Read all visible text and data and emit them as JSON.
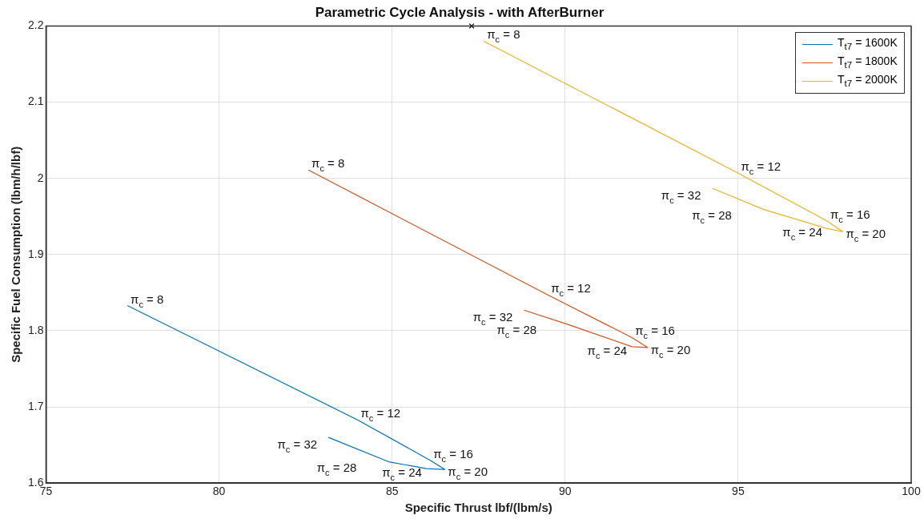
{
  "chart_data": {
    "type": "line",
    "title": "Parametric Cycle Analysis - with AfterBurner",
    "xlabel": "Specific Thrust lbf/(lbm/s)",
    "ylabel": "Specific Fuel Consumption (lbm/h/lbf)",
    "xlim": [
      75,
      100
    ],
    "xticks": [
      75,
      80,
      85,
      90,
      95,
      100
    ],
    "ylim": [
      1.6,
      2.2
    ],
    "yticks": [
      1.6,
      1.7,
      1.8,
      1.9,
      2,
      2.1,
      2.2
    ],
    "grid": true,
    "legend": "top right",
    "marker": "none",
    "line_style": "solid",
    "series": [
      {
        "name": "T$_{t7}$ = 1600K",
        "color": "#0072bd",
        "x": [
          77.35,
          84.0,
          86.1,
          86.52,
          86.0,
          84.9,
          83.16
        ],
        "values": [
          1.833,
          1.683,
          1.63,
          1.618,
          1.619,
          1.628,
          1.66
        ]
      },
      {
        "name": "T$_{t7}$ = 1800K",
        "color": "#d95319",
        "x": [
          82.58,
          89.5,
          91.93,
          92.38,
          91.93,
          90.1,
          88.81
        ],
        "values": [
          2.011,
          1.847,
          1.791,
          1.778,
          1.779,
          1.808,
          1.827
        ]
      },
      {
        "name": "T$_{t7}$ = 2000K",
        "color": "#edb120",
        "x": [
          87.65,
          94.99,
          97.57,
          98.02,
          97.57,
          95.74,
          94.25
        ],
        "values": [
          2.18,
          2.007,
          1.944,
          1.93,
          1.934,
          1.959,
          1.987
        ]
      },
      {
        "type": "scatter",
        "marker": "cross",
        "color": "#000000",
        "x": [
          87.3
        ],
        "values": [
          2.2
        ]
      }
    ],
    "annotations": [
      {
        "text": "π$_{c}$ = 8",
        "x": 77.35,
        "y": 1.833
      },
      {
        "text": "π$_{c}$ = 12",
        "x": 84.0,
        "y": 1.683
      },
      {
        "text": "π$_{c}$ = 16",
        "x": 86.1,
        "y": 1.63
      },
      {
        "text": "π$_{c}$ = 20",
        "x": 86.52,
        "y": 1.618
      },
      {
        "text": "π$_{c}$ = 24",
        "x": 86.0,
        "y": 1.619
      },
      {
        "text": "π$_{c}$ = 28",
        "x": 84.9,
        "y": 1.628
      },
      {
        "text": "π$_{c}$ = 32",
        "x": 83.16,
        "y": 1.66
      },
      {
        "text": "π$_{c}$ = 8",
        "x": 82.58,
        "y": 2.011
      },
      {
        "text": "π$_{c}$ = 12",
        "x": 89.5,
        "y": 1.847
      },
      {
        "text": "π$_{c}$ = 16",
        "x": 91.93,
        "y": 1.791
      },
      {
        "text": "π$_{c}$ = 20",
        "x": 92.38,
        "y": 1.778
      },
      {
        "text": "π$_{c}$ = 24",
        "x": 91.93,
        "y": 1.779
      },
      {
        "text": "π$_{c}$ = 28",
        "x": 90.1,
        "y": 1.808
      },
      {
        "text": "π$_{c}$ = 32",
        "x": 88.81,
        "y": 1.827
      },
      {
        "text": "π$_{c}$ = 8",
        "x": 87.65,
        "y": 2.18
      },
      {
        "text": "π$_{c}$ = 12",
        "x": 94.99,
        "y": 2.007
      },
      {
        "text": "π$_{c}$ = 16",
        "x": 97.57,
        "y": 1.944
      },
      {
        "text": "π$_{c}$ = 20",
        "x": 98.02,
        "y": 1.93
      },
      {
        "text": "π$_{c}$ = 24",
        "x": 97.57,
        "y": 1.934
      },
      {
        "text": "π$_{c}$ = 28",
        "x": 95.74,
        "y": 1.959
      },
      {
        "text": "π$_{c}$ = 32",
        "x": 94.25,
        "y": 1.987
      }
    ]
  }
}
